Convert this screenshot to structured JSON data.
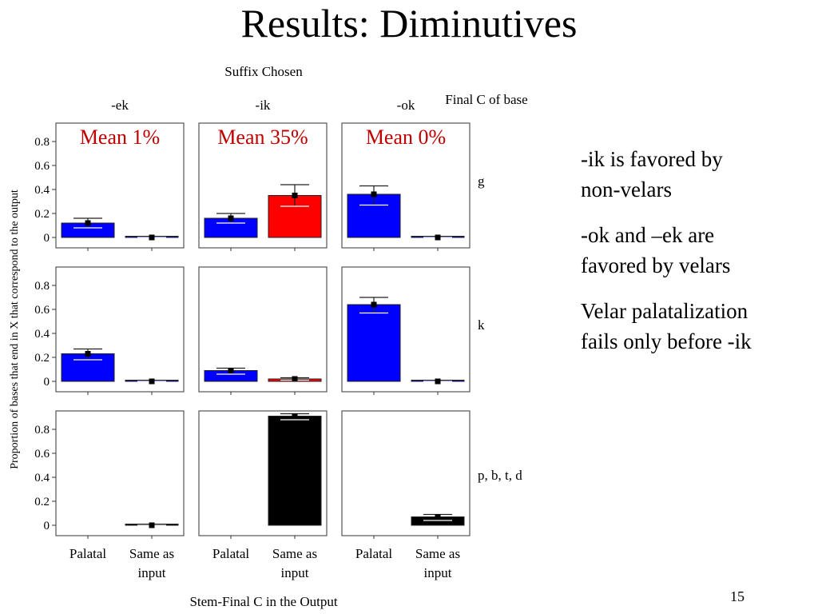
{
  "slide": {
    "title": "Results: Diminutives",
    "notes": [
      "-ik is favored by\nnon-velars",
      "-ok and –ek are\nfavored by velars",
      "Velar palatalization\nfails only before -ik"
    ],
    "page_number": "15"
  },
  "chart_data": {
    "type": "bar",
    "facet_col_title": "Suffix Chosen",
    "facet_row_title": "Final C of base",
    "columns": [
      "-ek",
      "-ik",
      "-ok"
    ],
    "rows": [
      "g",
      "k",
      "p, b, t, d"
    ],
    "categories": [
      "Palatal",
      "Same as\ninput"
    ],
    "xlabel": "Stem-Final C in the Output",
    "ylabel": "Proportion of bases that end in X that correspond to the output",
    "ylim": [
      0,
      0.9
    ],
    "yticks": [
      0,
      0.2,
      0.4,
      0.6,
      0.8
    ],
    "ytick_labels": [
      "0",
      "0.2",
      "0.4",
      "0.6",
      "0.8"
    ],
    "mean_annotations": [
      {
        "row": 0,
        "col": 0,
        "text": "Mean 1%"
      },
      {
        "row": 0,
        "col": 1,
        "text": "Mean 35%"
      },
      {
        "row": 0,
        "col": 2,
        "text": "Mean 0%"
      }
    ],
    "colors": {
      "palatal": "#0000ff",
      "same_nonpal": "#ff0000",
      "black": "#000000",
      "annotation": "#c00000"
    },
    "panels": [
      {
        "row": 0,
        "col": 0,
        "bars": [
          {
            "value": 0.12,
            "err": [
              0.08,
              0.16
            ],
            "color": "#0000ff"
          },
          {
            "value": 0.0,
            "err": [
              0.0,
              0.0
            ],
            "color": "#0000ff"
          }
        ]
      },
      {
        "row": 0,
        "col": 1,
        "bars": [
          {
            "value": 0.16,
            "err": [
              0.12,
              0.2
            ],
            "color": "#0000ff"
          },
          {
            "value": 0.35,
            "err": [
              0.26,
              0.44
            ],
            "color": "#ff0000"
          }
        ]
      },
      {
        "row": 0,
        "col": 2,
        "bars": [
          {
            "value": 0.36,
            "err": [
              0.27,
              0.43
            ],
            "color": "#0000ff"
          },
          {
            "value": 0.0,
            "err": [
              0.0,
              0.0
            ],
            "color": "#0000ff"
          }
        ]
      },
      {
        "row": 1,
        "col": 0,
        "bars": [
          {
            "value": 0.23,
            "err": [
              0.18,
              0.27
            ],
            "color": "#0000ff"
          },
          {
            "value": 0.0,
            "err": [
              0.0,
              0.0
            ],
            "color": "#0000ff"
          }
        ]
      },
      {
        "row": 1,
        "col": 1,
        "bars": [
          {
            "value": 0.09,
            "err": [
              0.06,
              0.11
            ],
            "color": "#0000ff"
          },
          {
            "value": 0.02,
            "err": [
              0.01,
              0.03
            ],
            "color": "#ff0000"
          }
        ]
      },
      {
        "row": 1,
        "col": 2,
        "bars": [
          {
            "value": 0.64,
            "err": [
              0.57,
              0.7
            ],
            "color": "#0000ff"
          },
          {
            "value": 0.0,
            "err": [
              0.0,
              0.0
            ],
            "color": "#0000ff"
          }
        ]
      },
      {
        "row": 2,
        "col": 0,
        "bars": [
          {
            "value": null,
            "err": null,
            "color": "#000000"
          },
          {
            "value": 0.0,
            "err": [
              0.0,
              0.0
            ],
            "color": "#000000"
          }
        ]
      },
      {
        "row": 2,
        "col": 1,
        "bars": [
          {
            "value": null,
            "err": null,
            "color": "#000000"
          },
          {
            "value": 0.91,
            "err": [
              0.88,
              0.93
            ],
            "color": "#000000"
          }
        ]
      },
      {
        "row": 2,
        "col": 2,
        "bars": [
          {
            "value": null,
            "err": null,
            "color": "#000000"
          },
          {
            "value": 0.07,
            "err": [
              0.04,
              0.09
            ],
            "color": "#000000"
          }
        ]
      }
    ]
  }
}
